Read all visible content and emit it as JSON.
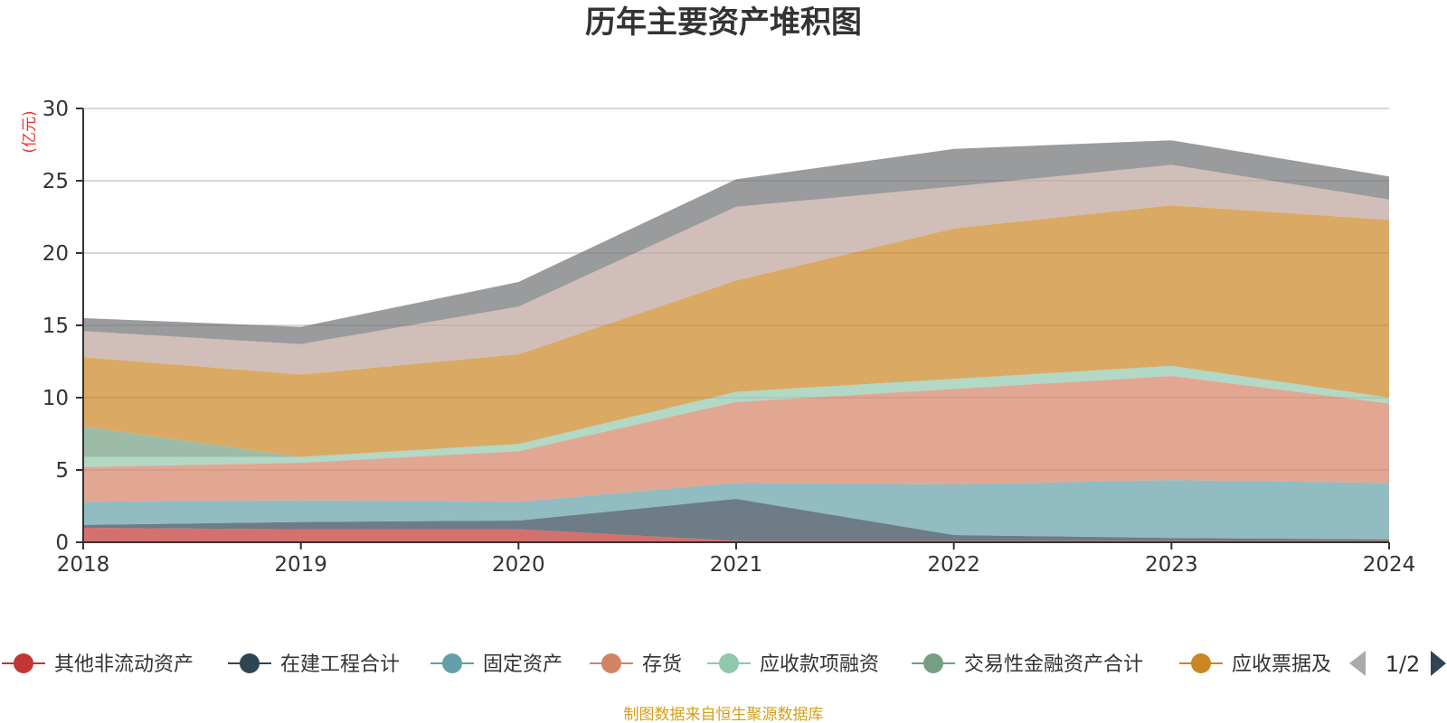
{
  "chart_data": {
    "type": "area",
    "stacked": true,
    "title": "历年主要资产堆积图",
    "ylabel": "(亿元)",
    "x": [
      "2018",
      "2019",
      "2020",
      "2021",
      "2022",
      "2023",
      "2024"
    ],
    "ylim": [
      0,
      30
    ],
    "yticks": [
      "0",
      "5",
      "10",
      "15",
      "20",
      "25",
      "30"
    ],
    "grid": true,
    "series": [
      {
        "name": "其他非流动资产",
        "color": "#c23531",
        "values": [
          1.0,
          0.9,
          0.9,
          0.1,
          0.1,
          0.1,
          0.1
        ]
      },
      {
        "name": "在建工程合计",
        "color": "#2f4554",
        "values": [
          0.2,
          0.5,
          0.6,
          2.9,
          0.4,
          0.2,
          0.1
        ]
      },
      {
        "name": "固定资产",
        "color": "#61a0a8",
        "values": [
          1.6,
          1.5,
          1.3,
          1.1,
          3.5,
          4.0,
          3.9
        ]
      },
      {
        "name": "存货",
        "color": "#d48265",
        "values": [
          2.4,
          2.6,
          3.5,
          5.6,
          6.6,
          7.2,
          5.5
        ]
      },
      {
        "name": "应收款项融资",
        "color": "#91c7ae",
        "values": [
          0.7,
          0.4,
          0.5,
          0.7,
          0.7,
          0.7,
          0.4
        ]
      },
      {
        "name": "交易性金融资产合计",
        "color": "#749f83",
        "values": [
          2.1,
          0.0,
          0.0,
          0.0,
          0.0,
          0.0,
          0.0
        ]
      },
      {
        "name": "应收票据及",
        "color": "#ca8622",
        "values": [
          4.8,
          5.7,
          6.2,
          7.7,
          10.4,
          11.1,
          12.3
        ]
      },
      {
        "name": "",
        "color": "#bda29a",
        "values": [
          1.8,
          2.1,
          3.3,
          5.1,
          2.9,
          2.8,
          1.4
        ]
      },
      {
        "name": "",
        "color": "#6e7074",
        "values": [
          0.9,
          1.2,
          1.7,
          1.9,
          2.6,
          1.7,
          1.6
        ]
      }
    ],
    "legend": {
      "position": "bottom",
      "page": "1/2"
    },
    "source": "制图数据来自恒生聚源数据库"
  }
}
